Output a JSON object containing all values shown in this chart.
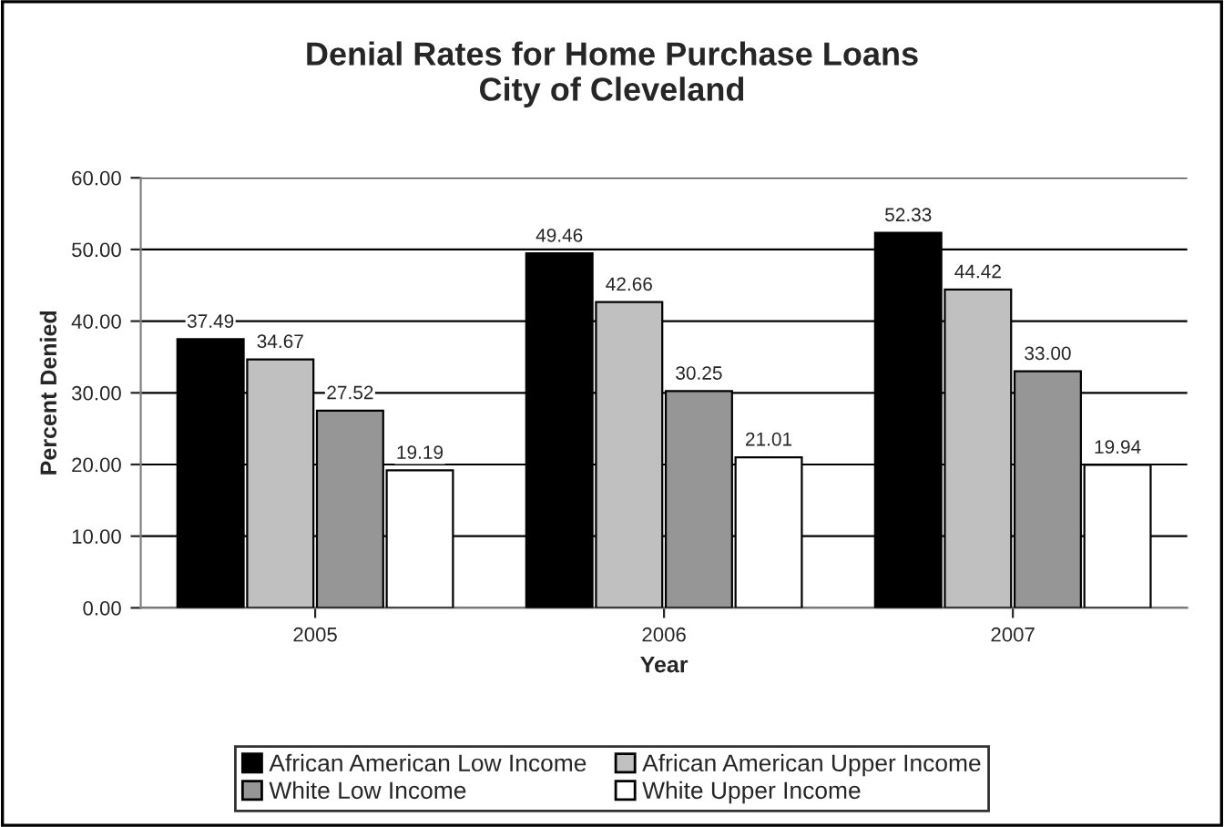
{
  "chart_data": {
    "type": "bar",
    "title": "Denial Rates for Home Purchase Loans\nCity of Cleveland",
    "xlabel": "Year",
    "ylabel": "Percent Denied",
    "categories": [
      "2005",
      "2006",
      "2007"
    ],
    "series": [
      {
        "name": "African American Low Income",
        "color": "#000000",
        "values": [
          37.49,
          49.46,
          52.33
        ],
        "value_labels": [
          "37.49",
          "49.46",
          "52.33"
        ]
      },
      {
        "name": "African American Upper Income",
        "color": "#c0c0c0",
        "values": [
          34.67,
          42.66,
          44.42
        ],
        "value_labels": [
          "34.67",
          "42.66",
          "44.42"
        ]
      },
      {
        "name": "White Low Income",
        "color": "#969696",
        "values": [
          27.52,
          30.25,
          33.0
        ],
        "value_labels": [
          "27.52",
          "30.25",
          "33.00"
        ]
      },
      {
        "name": "White Upper Income",
        "color": "#ffffff",
        "values": [
          19.19,
          21.01,
          19.94
        ],
        "value_labels": [
          "19.19",
          "21.01",
          "19.94"
        ]
      }
    ],
    "ylim": [
      0,
      60
    ],
    "yticks": [
      {
        "value": 0,
        "label": "0.00"
      },
      {
        "value": 10,
        "label": "10.00"
      },
      {
        "value": 20,
        "label": "20.00"
      },
      {
        "value": 30,
        "label": "30.00"
      },
      {
        "value": 40,
        "label": "40.00"
      },
      {
        "value": 50,
        "label": "50.00"
      },
      {
        "value": 60,
        "label": "60.00"
      }
    ],
    "grid": "y",
    "legend": "bottom"
  }
}
